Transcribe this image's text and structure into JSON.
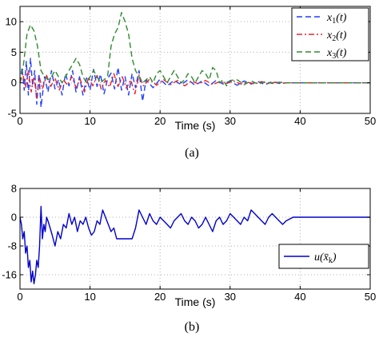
{
  "chart_data": [
    {
      "type": "line",
      "caption": "(a)",
      "xlabel": "Time (s)",
      "ylabel": "",
      "xlim": [
        0,
        50
      ],
      "ylim": [
        -5,
        12.5
      ],
      "xticks": [
        "0",
        "10",
        "20",
        "30",
        "40",
        "50"
      ],
      "yticks": [
        "-5",
        "0",
        "5",
        "10"
      ],
      "grid": true,
      "legend_position": "top-right",
      "legend": [
        {
          "name": "x",
          "sub": "1",
          "arg": "(t)",
          "color": "#1f3fff",
          "dash": "dashed"
        },
        {
          "name": "x",
          "sub": "2",
          "arg": "(t)",
          "color": "#e8232b",
          "dash": "dashdot"
        },
        {
          "name": "x",
          "sub": "3",
          "arg": "(t)",
          "color": "#2e8b2e",
          "dash": "dashed"
        }
      ],
      "series": [
        {
          "x": [
            0,
            0.3,
            0.6,
            0.9,
            1.2,
            1.5,
            1.8,
            2.1,
            2.4,
            2.7,
            3,
            3.5,
            4,
            4.5,
            5,
            5.5,
            6,
            6.5,
            7,
            7.5,
            8,
            8.5,
            9,
            9.5,
            10,
            10.5,
            11,
            11.5,
            12,
            12.5,
            13,
            13.5,
            14,
            14.5,
            15,
            15.5,
            16,
            16.5,
            17,
            17.5,
            18,
            19,
            20,
            21,
            22,
            23,
            24,
            25,
            26,
            27,
            28,
            29,
            30,
            31,
            32,
            33,
            34,
            35,
            36,
            37,
            38,
            39,
            40,
            45,
            50
          ],
          "y": [
            0,
            2.5,
            -1.2,
            3.5,
            -2,
            4,
            -0.5,
            2,
            -3.5,
            1.5,
            -4,
            1,
            -1.5,
            2,
            -1,
            0.5,
            -2,
            1.5,
            -0.5,
            2,
            -1.5,
            1,
            -2,
            0.8,
            -1.2,
            2.2,
            -0.6,
            1.4,
            -1.8,
            0.6,
            1.6,
            -1,
            2.5,
            -1.2,
            1,
            -2,
            1.5,
            -0.8,
            2,
            -3,
            0.5,
            -0.8,
            0.6,
            -0.5,
            0.4,
            -0.3,
            0.5,
            -0.4,
            0.3,
            -0.5,
            0.4,
            -0.2,
            0.3,
            -0.4,
            0.3,
            -0.2,
            0.2,
            -0.3,
            0.2,
            -0.1,
            0,
            0,
            0,
            0,
            0
          ]
        },
        {
          "x": [
            0,
            0.4,
            0.8,
            1.2,
            1.6,
            2,
            2.4,
            2.8,
            3.2,
            3.8,
            4.4,
            5,
            5.6,
            6.2,
            6.8,
            7.4,
            8,
            8.6,
            9.2,
            9.8,
            10.4,
            11,
            11.6,
            12.2,
            12.8,
            13.4,
            14,
            14.6,
            15.2,
            15.8,
            16.4,
            17,
            17.6,
            18.5,
            19.5,
            20.5,
            21.5,
            22.5,
            23.5,
            24.5,
            25.5,
            26.5,
            27.5,
            28.5,
            29.5,
            30.5,
            31.5,
            32.5,
            33.5,
            34.5,
            35.5,
            36.5,
            37.5,
            38,
            40,
            45,
            50
          ],
          "y": [
            0,
            1.5,
            -0.8,
            2,
            -1.5,
            1,
            -2.5,
            0.8,
            -1,
            1.2,
            -0.6,
            0.8,
            -1.2,
            0.5,
            -0.4,
            1,
            -0.8,
            0.6,
            -1.5,
            0.9,
            -0.5,
            1.2,
            -1,
            0.4,
            -0.7,
            1.5,
            -0.6,
            1,
            -0.9,
            0.5,
            -1.8,
            1.3,
            -0.5,
            0.6,
            -0.4,
            0.5,
            -0.3,
            0.4,
            -0.5,
            0.3,
            -0.2,
            0.4,
            -0.3,
            0.2,
            -0.1,
            0.3,
            -0.2,
            0.1,
            -0.2,
            0.2,
            -0.1,
            0.1,
            -0.1,
            0,
            0,
            0,
            0
          ]
        },
        {
          "x": [
            0,
            0.5,
            1,
            1.5,
            2,
            2.5,
            3,
            3.5,
            4,
            4.5,
            5,
            5.5,
            6,
            6.5,
            7,
            7.5,
            8,
            8.5,
            9,
            9.5,
            10,
            10.5,
            11,
            11.5,
            12,
            12.5,
            13,
            13.5,
            14,
            14.5,
            15,
            15.5,
            16,
            16.5,
            17,
            17.5,
            18,
            18.5,
            19,
            19.5,
            20,
            20.5,
            21,
            21.5,
            22,
            22.5,
            23,
            23.5,
            24,
            24.5,
            25,
            25.5,
            26,
            26.5,
            27,
            27.5,
            28,
            28.5,
            29,
            29.5,
            30,
            31,
            32,
            33,
            34,
            35,
            36,
            37,
            38,
            40,
            45,
            50
          ],
          "y": [
            0,
            3,
            8,
            9.5,
            8.5,
            6,
            2,
            1,
            0.5,
            1,
            2,
            1,
            0,
            1,
            2,
            3,
            4,
            3,
            1,
            0,
            1,
            2,
            1,
            0,
            0.5,
            1,
            6,
            8,
            9,
            11.5,
            10,
            8,
            4,
            2,
            1,
            0,
            0.5,
            1,
            0,
            1.5,
            2,
            1,
            0,
            1,
            2,
            1,
            0,
            0.5,
            1.5,
            1,
            0,
            1,
            2,
            1.5,
            0.5,
            2.5,
            2,
            0,
            0.5,
            -0.5,
            0.4,
            0.5,
            -0.3,
            0.3,
            -0.2,
            0.2,
            -0.1,
            0.1,
            0,
            0,
            0,
            0
          ]
        }
      ]
    },
    {
      "type": "line",
      "caption": "(b)",
      "xlabel": "Time (s)",
      "ylabel": "",
      "xlim": [
        0,
        50
      ],
      "ylim": [
        -20,
        8
      ],
      "xticks": [
        "0",
        "10",
        "20",
        "30",
        "40",
        "50"
      ],
      "yticks": [
        "8",
        "0",
        "-8",
        "-16"
      ],
      "grid": true,
      "legend_position": "bottom-right",
      "legend": [
        {
          "name": "u",
          "sub": "",
          "arg": "(x̄_k)",
          "label": "u(x̄k)",
          "color": "#0000cc",
          "dash": "solid"
        }
      ],
      "series": [
        {
          "x": [
            0,
            0.2,
            0.4,
            0.6,
            0.8,
            1,
            1.2,
            1.4,
            1.6,
            1.8,
            2,
            2.2,
            2.4,
            2.6,
            2.8,
            3,
            3.2,
            3.4,
            3.6,
            3.8,
            4,
            4.3,
            4.6,
            5,
            5.4,
            5.8,
            6.2,
            6.6,
            7,
            7.4,
            7.8,
            8.2,
            8.6,
            9,
            9.4,
            9.8,
            10.2,
            10.6,
            11,
            11.4,
            11.8,
            12.2,
            12.6,
            13,
            13.4,
            13.8,
            14.2,
            14.6,
            15,
            15.5,
            16,
            16.5,
            17,
            17.5,
            18,
            18.5,
            19,
            19.5,
            20,
            20.5,
            21,
            21.5,
            22,
            22.5,
            23,
            23.5,
            24,
            24.5,
            25,
            25.5,
            26,
            26.5,
            27,
            27.5,
            28,
            28.5,
            29,
            29.5,
            30,
            30.5,
            31,
            31.5,
            32,
            32.5,
            33,
            33.5,
            34,
            34.5,
            35,
            35.5,
            36,
            36.5,
            37,
            37.5,
            38,
            38.5,
            39,
            40,
            45,
            50
          ],
          "y": [
            0,
            -2,
            -6,
            -4,
            -10,
            -8,
            -14,
            -12,
            -18,
            -15,
            -18.5,
            -16,
            -12,
            -14,
            -8,
            3,
            -6,
            -2,
            -4,
            0,
            -1,
            -3,
            -5,
            -8,
            -4,
            -6,
            -2,
            -3,
            1,
            -2,
            0,
            -4,
            -1,
            -2,
            0,
            -3,
            -5,
            -4,
            -1,
            -2,
            2,
            0,
            -2,
            -4,
            -3,
            -6,
            -6,
            -6,
            -6,
            -6,
            -6,
            -3,
            2,
            0,
            -2,
            1,
            -1,
            -2,
            0,
            -1,
            -2,
            -3,
            -1,
            0,
            1,
            -1,
            -2,
            0,
            -1,
            -3,
            -2,
            0,
            -2,
            -4,
            -1,
            0,
            -2,
            -1,
            1,
            0,
            -1,
            -2,
            0,
            -1,
            2,
            1,
            0,
            -1,
            -2,
            0,
            1,
            0,
            -1,
            -2,
            -1,
            -0.5,
            0,
            0,
            0,
            0
          ]
        }
      ]
    }
  ]
}
